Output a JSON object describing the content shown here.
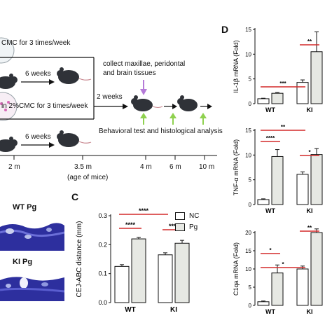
{
  "panel_a": {
    "row1_text": "CMC for 3 times/week",
    "row2_text": "in 2%CMC for 3 times/week",
    "six_weeks_1": "6 weeks",
    "six_weeks_2": "6 weeks",
    "two_weeks": "2 weeks",
    "collect_line1": "collect maxillae, peridontal",
    "collect_line2": "and brain tissues",
    "behavior": "Behavioral test and histological analysis",
    "timeline_labels": [
      "2 m",
      "3.5 m",
      "4 m",
      "6 m",
      "10 m"
    ],
    "age_label": "(age of mice)"
  },
  "panel_b": {
    "wt_label": "WT Pg",
    "ki_label": "KI Pg"
  },
  "panel_c": {
    "letter": "C",
    "legend": [
      "NC",
      "Pg"
    ]
  },
  "panel_d": {
    "letter": "D"
  },
  "colors": {
    "nc_fill": "#ffffff",
    "pg_fill": "#e6e8e3",
    "purple_arrow": "#b57ad8",
    "green_arrow": "#8fd14f",
    "red_line": "#d42a2a",
    "tissue_blue": "#2d2f9e"
  },
  "chart_data": [
    {
      "id": "C",
      "type": "bar",
      "ylabel": "CEJ-ABC distance (mm)",
      "categories": [
        "WT",
        "KI"
      ],
      "ylim": [
        0,
        0.3
      ],
      "yticks": [
        "0.0",
        "0.1",
        "0.2",
        "0.3"
      ],
      "series": [
        {
          "name": "NC",
          "values": [
            0.125,
            0.165
          ],
          "err": [
            0.006,
            0.007
          ]
        },
        {
          "name": "Pg",
          "values": [
            0.22,
            0.205
          ],
          "err": [
            0.005,
            0.01
          ]
        }
      ],
      "sig": [
        {
          "label": "****",
          "pair": [
            0,
            2
          ]
        },
        {
          "label": "****",
          "pair": [
            0,
            1
          ]
        },
        {
          "label": "****",
          "pair": [
            2,
            3
          ]
        }
      ]
    },
    {
      "id": "D1",
      "type": "bar",
      "ylabel": "IL-1β mRNA (Fold)",
      "categories": [
        "WT",
        "KI"
      ],
      "ylim": [
        0,
        15
      ],
      "yticks": [
        "0",
        "5",
        "10",
        "15"
      ],
      "series": [
        {
          "name": "NC",
          "values": [
            1.0,
            4.3
          ],
          "err": [
            0.1,
            0.5
          ]
        },
        {
          "name": "Pg",
          "values": [
            2.1,
            10.5
          ],
          "err": [
            0.15,
            4.0
          ]
        }
      ],
      "sig": [
        {
          "label": "**",
          "pair": [
            2,
            3
          ]
        },
        {
          "label": "***",
          "pair": [
            0,
            2
          ]
        }
      ]
    },
    {
      "id": "D2",
      "type": "bar",
      "ylabel": "TNF-α mRNA (Fold)",
      "categories": [
        "WT",
        "KI"
      ],
      "ylim": [
        0,
        15
      ],
      "yticks": [
        "0",
        "5",
        "10",
        "15"
      ],
      "series": [
        {
          "name": "NC",
          "values": [
            1.0,
            6.1
          ],
          "err": [
            0.15,
            0.5
          ]
        },
        {
          "name": "Pg",
          "values": [
            9.7,
            10.1
          ],
          "err": [
            1.4,
            1.2
          ]
        }
      ],
      "sig": [
        {
          "label": "**",
          "pair": [
            0,
            2
          ]
        },
        {
          "label": "****",
          "pair": [
            0,
            1
          ]
        },
        {
          "label": "*",
          "pair": [
            2,
            3
          ]
        }
      ]
    },
    {
      "id": "D3",
      "type": "bar",
      "ylabel": "C1qa mRNA (Fold)",
      "categories": [
        "WT",
        "KI"
      ],
      "ylim": [
        0,
        20
      ],
      "yticks": [
        "0",
        "5",
        "10",
        "15",
        "20"
      ],
      "series": [
        {
          "name": "NC",
          "values": [
            1.0,
            10.0
          ],
          "err": [
            0.2,
            0.8
          ]
        },
        {
          "name": "Pg",
          "values": [
            8.9,
            20.0
          ],
          "err": [
            2.2,
            3.5
          ]
        }
      ],
      "sig": [
        {
          "label": "**",
          "pair": [
            2,
            3
          ]
        },
        {
          "label": "*",
          "pair": [
            0,
            2
          ]
        },
        {
          "label": "*",
          "pair": [
            0,
            1
          ]
        }
      ]
    }
  ]
}
